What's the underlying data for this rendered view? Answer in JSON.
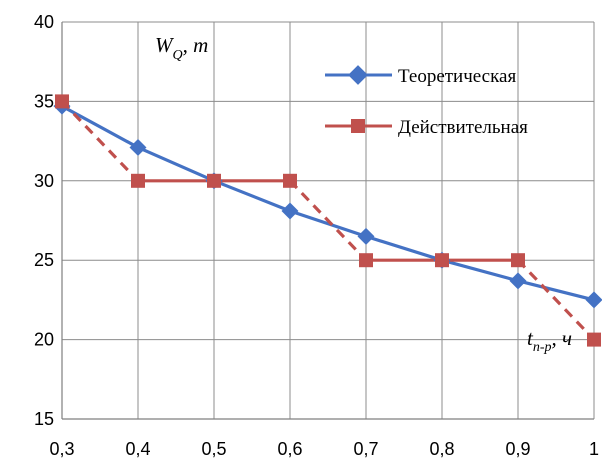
{
  "chart_data": {
    "type": "line",
    "x": [
      0.3,
      0.4,
      0.5,
      0.6,
      0.7,
      0.8,
      0.9,
      1.0
    ],
    "x_tick_labels": [
      "0,3",
      "0,4",
      "0,5",
      "0,6",
      "0,7",
      "0,8",
      "0,9",
      "1"
    ],
    "y_ticks": [
      15,
      20,
      25,
      30,
      35,
      40
    ],
    "y_tick_labels": [
      "15",
      "20",
      "25",
      "30",
      "35",
      "40"
    ],
    "xlim": [
      0.3,
      1.0
    ],
    "ylim": [
      15,
      40
    ],
    "grid": true,
    "ylabel": {
      "main": "W",
      "sub": "Q",
      "rest": ", m"
    },
    "xlabel": {
      "main": "t",
      "sub": "n-p",
      "rest": ", ч"
    },
    "legend_position": "top-right",
    "series": [
      {
        "name": "Теоретическая",
        "color": "#4472C4",
        "marker": "diamond",
        "line_style": "solid",
        "y": [
          34.7,
          32.1,
          30.0,
          28.1,
          26.5,
          25.0,
          23.7,
          22.5
        ]
      },
      {
        "name": "Действительная",
        "color": "#C0504D",
        "marker": "square",
        "segments": [
          "dashed",
          "solid",
          "solid",
          "dashed",
          "solid",
          "solid",
          "dashed"
        ],
        "y": [
          35.0,
          30.0,
          30.0,
          30.0,
          25.0,
          25.0,
          25.0,
          20.0
        ]
      }
    ]
  }
}
